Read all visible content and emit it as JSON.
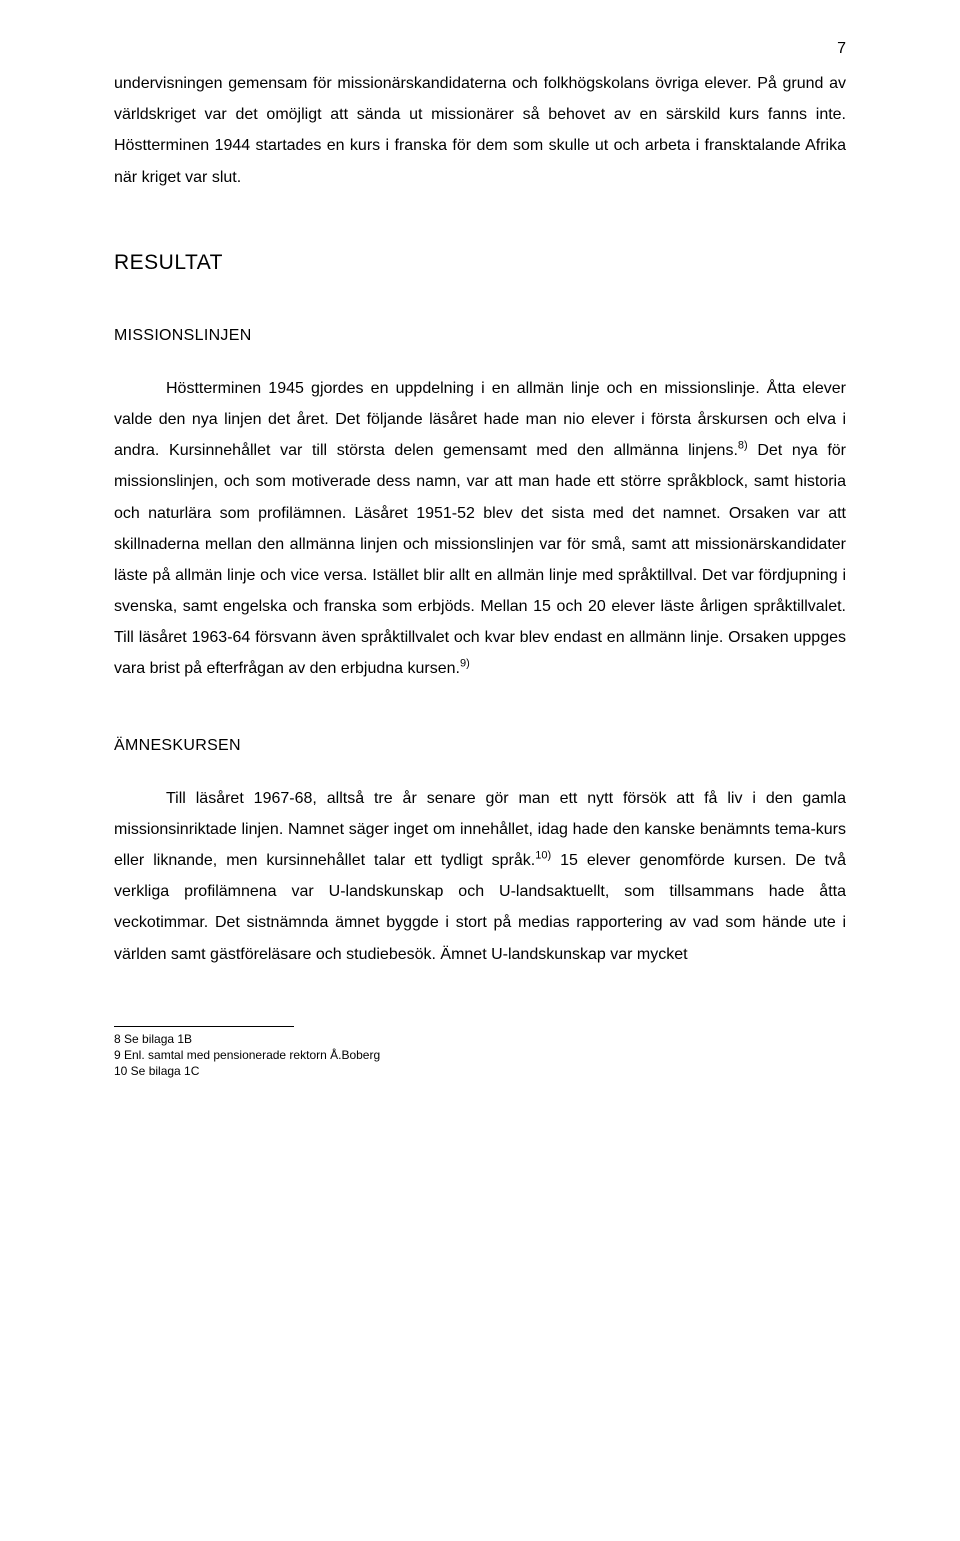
{
  "page": {
    "number": "7"
  },
  "intro": {
    "text": "undervisningen gemensam för missionärskandidaterna och folkhögskolans övriga elever. På grund av världskriget var det omöjligt att sända ut missionärer så behovet av en särskild kurs fanns inte. Höstterminen 1944 startades en kurs i franska för dem som skulle ut och arbeta i fransktalande Afrika när kriget var slut."
  },
  "headings": {
    "resultat": "RESULTAT",
    "missionslinjen": "MISSIONSLINJEN",
    "amneskursen": "ÄMNESKURSEN"
  },
  "missionslinjen": {
    "p1a": "Höstterminen 1945 gjordes en uppdelning i en allmän linje och en missionslinje. Åtta elever valde den nya linjen det året. Det följande läsåret hade man nio elever i första årskursen och elva i andra. Kursinnehållet var till största delen gemensamt med den allmänna linjens.",
    "sup1": "8)",
    "p1b": " Det nya för missionslinjen, och som motiverade dess namn, var att man hade ett större  språkblock, samt historia och naturlära som profilämnen. Läsåret 1951-52 blev det sista med det namnet. Orsaken var att skillnaderna mellan den allmänna linjen och missionslinjen var för små, samt att missionärskandidater läste på allmän linje och vice versa. Istället blir allt en allmän linje med språktillval. Det var fördjupning i svenska, samt engelska och franska som erbjöds. Mellan 15 och 20 elever läste årligen språktillvalet. Till läsåret 1963-64 försvann även språktillvalet och kvar blev endast en allmänn linje. Orsaken uppges vara brist på efterfrågan av den erbjudna kursen.",
    "sup2": "9)"
  },
  "amneskursen": {
    "p1a": "Till läsåret 1967-68, alltså tre år senare gör man ett nytt försök att få liv i den gamla missionsinriktade linjen. Namnet säger inget om innehållet, idag hade den kanske benämnts tema-kurs eller liknande, men kursinnehållet talar ett tydligt språk.",
    "sup1": "10)",
    "p1b": " 15 elever genomförde kursen. De två verkliga profilämnena var U-landskunskap och U-landsaktuellt, som tillsammans hade åtta veckotimmar. Det sistnämnda ämnet byggde i stort på medias rapportering av vad som hände ute i världen samt gästföreläsare och studiebesök. Ämnet U-landskunskap var mycket"
  },
  "footnotes": {
    "fn8": "8 Se bilaga 1B",
    "fn9": "9 Enl. samtal med pensionerade rektorn Å.Boberg",
    "fn10": "10 Se bilaga 1C"
  }
}
